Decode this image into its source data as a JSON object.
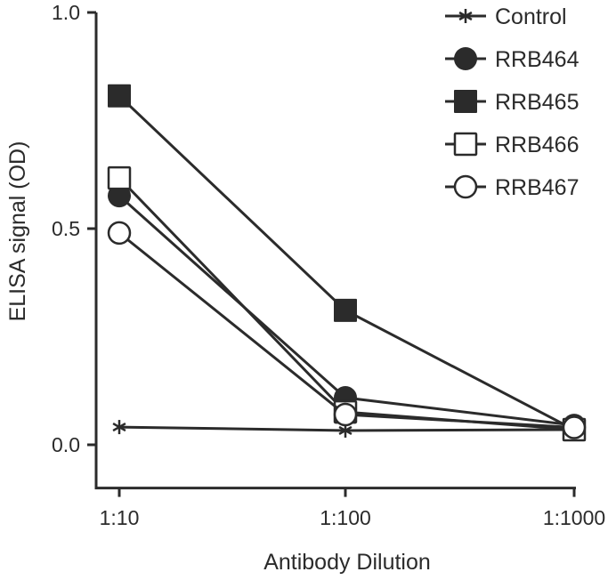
{
  "chart_data": {
    "type": "line",
    "title": "",
    "xlabel": "Antibody Dilution",
    "ylabel": "ELISA signal (OD)",
    "categories": [
      "1:10",
      "1:100",
      "1:1000"
    ],
    "ylim": [
      -0.1,
      1.0
    ],
    "yticks": [
      "0.0",
      "0.5",
      "1.0"
    ],
    "ytick_values": [
      0.0,
      0.5,
      1.0
    ],
    "legend_position": "top-right",
    "grid": false,
    "series": [
      {
        "name": "Control",
        "marker": "asterisk",
        "values": [
          0.041,
          0.033,
          0.035
        ]
      },
      {
        "name": "RRB464",
        "marker": "filled-circle",
        "values": [
          0.576,
          0.109,
          0.045
        ]
      },
      {
        "name": "RRB465",
        "marker": "filled-square",
        "values": [
          0.807,
          0.311,
          0.035
        ]
      },
      {
        "name": "RRB466",
        "marker": "open-square",
        "values": [
          0.617,
          0.076,
          0.035
        ]
      },
      {
        "name": "RRB467",
        "marker": "open-circle",
        "values": [
          0.49,
          0.07,
          0.04
        ]
      }
    ],
    "color": "#2b2b2b"
  }
}
